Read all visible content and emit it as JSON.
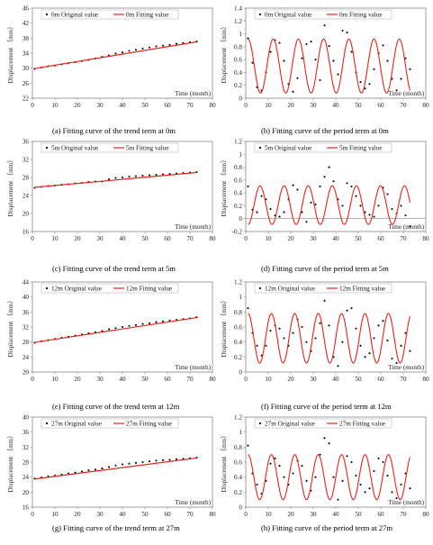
{
  "chart_data": [
    {
      "id": "a",
      "type": "scatter",
      "caption": "(a)   Fitting curve of the trend term at 0m",
      "ylabel": "Displacement （mm）",
      "xlabel": "Time (month)",
      "xlim": [
        0,
        80
      ],
      "ylim": [
        22,
        46
      ],
      "xticks": [
        "0",
        "10",
        "20",
        "30",
        "40",
        "50",
        "60",
        "70",
        "80"
      ],
      "yticks": [
        "22",
        "26",
        "30",
        "34",
        "38",
        "42",
        "46"
      ],
      "legend": {
        "placement": "top-left"
      },
      "series": [
        {
          "name": "0m  Original value",
          "kind": "points",
          "color": "#000000",
          "x": [
            1,
            4,
            7,
            10,
            13,
            16,
            19,
            22,
            25,
            28,
            31,
            34,
            37,
            40,
            43,
            46,
            49,
            52,
            55,
            58,
            61,
            64,
            67,
            70,
            73
          ],
          "y": [
            29.8,
            30.2,
            30.5,
            30.7,
            31.0,
            31.3,
            31.6,
            31.9,
            32.2,
            32.6,
            33.0,
            33.4,
            33.9,
            34.2,
            34.6,
            34.9,
            35.2,
            35.5,
            35.8,
            36.0,
            36.2,
            36.5,
            36.7,
            36.9,
            37.1
          ]
        },
        {
          "name": "0m  Fitting value",
          "kind": "line",
          "color": "#e8231b",
          "x": [
            1,
            73
          ],
          "y": [
            29.9,
            37.0
          ]
        }
      ]
    },
    {
      "id": "b",
      "type": "scatter",
      "caption": "(b)  Fitting curve of the period term at 0m",
      "ylabel": "Displacement （mm）",
      "xlabel": "Time (month)",
      "xlim": [
        0,
        80
      ],
      "ylim": [
        0,
        1.4
      ],
      "xticks": [
        "0",
        "10",
        "20",
        "30",
        "40",
        "50",
        "60",
        "70",
        "80"
      ],
      "yticks": [
        "0",
        "0.2",
        "0.4",
        "0.6",
        "0.8",
        "1",
        "1.2",
        "1.4"
      ],
      "legend": {
        "placement": "top-left"
      },
      "series": [
        {
          "name": "0m  Original value",
          "kind": "points",
          "color": "#000000",
          "x": [
            1,
            3,
            5,
            7,
            9,
            11,
            13,
            15,
            17,
            19,
            21,
            23,
            25,
            27,
            29,
            31,
            33,
            35,
            37,
            39,
            41,
            43,
            45,
            47,
            49,
            51,
            53,
            55,
            57,
            59,
            61,
            63,
            65,
            67,
            69,
            71,
            73
          ],
          "y": [
            0.93,
            0.55,
            0.17,
            0.12,
            0.4,
            0.72,
            0.9,
            0.86,
            0.58,
            0.22,
            0.1,
            0.31,
            0.62,
            0.84,
            0.88,
            0.6,
            0.28,
            1.13,
            0.81,
            0.58,
            0.37,
            1.05,
            1.02,
            0.72,
            0.4,
            0.25,
            0.15,
            0.22,
            0.45,
            0.7,
            0.82,
            0.58,
            0.3,
            0.12,
            0.3,
            0.62,
            0.45
          ]
        },
        {
          "name": "0m  Fitting value",
          "kind": "line",
          "color": "#e8231b",
          "function": "0.5+0.42*cos(2*pi*(t-1)/11.2)",
          "x_range": [
            1,
            73
          ]
        }
      ]
    },
    {
      "id": "c",
      "type": "scatter",
      "caption": "(c)  Fitting curve of the trend term at 5m",
      "ylabel": "Displacement （mm）",
      "xlabel": "Time (month)",
      "xlim": [
        0,
        80
      ],
      "ylim": [
        16,
        36
      ],
      "xticks": [
        "0",
        "10",
        "20",
        "30",
        "40",
        "50",
        "60",
        "70",
        "80"
      ],
      "yticks": [
        "16",
        "20",
        "24",
        "28",
        "32",
        "36"
      ],
      "legend": {
        "placement": "top-left"
      },
      "series": [
        {
          "name": "5m  Original value",
          "kind": "points",
          "color": "#000000",
          "x": [
            1,
            4,
            7,
            10,
            13,
            16,
            19,
            22,
            25,
            28,
            31,
            34,
            37,
            40,
            43,
            46,
            49,
            52,
            55,
            58,
            61,
            64,
            67,
            70,
            73
          ],
          "y": [
            25.7,
            25.9,
            26.1,
            26.2,
            26.4,
            26.5,
            26.7,
            26.8,
            27.0,
            27.1,
            27.1,
            27.6,
            27.9,
            28.0,
            28.2,
            28.3,
            28.4,
            28.5,
            28.6,
            28.7,
            28.8,
            28.9,
            29.0,
            29.1,
            29.2
          ]
        },
        {
          "name": "5m  Fitting value",
          "kind": "line",
          "color": "#e8231b",
          "x": [
            1,
            73
          ],
          "y": [
            25.8,
            29.1
          ]
        }
      ]
    },
    {
      "id": "d",
      "type": "scatter",
      "caption": "(d)  Fitting curve of the period term at 5m",
      "ylabel": "Displacement （mm）",
      "xlabel": "Time (month)",
      "xlim": [
        0,
        80
      ],
      "ylim": [
        -0.2,
        1.2
      ],
      "xticks": [
        "0",
        "10",
        "20",
        "30",
        "40",
        "50",
        "60",
        "70",
        "80"
      ],
      "yticks": [
        "-0.2",
        "0",
        "0.2",
        "0.4",
        "0.6",
        "0.8",
        "1",
        "1.2"
      ],
      "legend": {
        "placement": "top-left"
      },
      "series": [
        {
          "name": "5m  Original value",
          "kind": "points",
          "color": "#000000",
          "x": [
            1,
            3,
            5,
            7,
            9,
            11,
            13,
            15,
            17,
            19,
            21,
            23,
            25,
            27,
            29,
            31,
            33,
            35,
            37,
            39,
            41,
            43,
            45,
            47,
            49,
            51,
            53,
            55,
            57,
            59,
            61,
            63,
            65,
            67,
            69,
            71,
            73
          ],
          "y": [
            0.5,
            0.14,
            0.1,
            0.35,
            0.3,
            0.15,
            0.05,
            0.03,
            0.1,
            0.3,
            0.52,
            0.45,
            0.1,
            -0.05,
            0.25,
            0.22,
            0.5,
            0.65,
            0.8,
            0.58,
            0.3,
            0.2,
            0.55,
            0.5,
            0.35,
            0.2,
            0.1,
            0.06,
            0.03,
            0.2,
            0.48,
            0.38,
            0.15,
            0.08,
            0.2,
            0.05,
            -0.12
          ]
        },
        {
          "name": "5m  Fitting value",
          "kind": "line",
          "color": "#e8231b",
          "function": "0.21-0.3*cos(2*pi*(t-1)/10.7)",
          "x_range": [
            1,
            73
          ]
        }
      ]
    },
    {
      "id": "e",
      "type": "scatter",
      "caption": "(e)   Fitting curve of the trend term at 12m",
      "ylabel": "Displacement （mm）",
      "xlabel": "Time (month)",
      "xlim": [
        0,
        80
      ],
      "ylim": [
        20,
        44
      ],
      "xticks": [
        "0",
        "10",
        "20",
        "30",
        "40",
        "50",
        "60",
        "70",
        "80"
      ],
      "yticks": [
        "20",
        "24",
        "28",
        "32",
        "36",
        "40",
        "44"
      ],
      "legend": {
        "placement": "top-left"
      },
      "series": [
        {
          "name": "12m  Original value",
          "kind": "points",
          "color": "#000000",
          "x": [
            1,
            4,
            7,
            10,
            13,
            16,
            19,
            22,
            25,
            28,
            31,
            34,
            37,
            40,
            43,
            46,
            49,
            52,
            55,
            58,
            61,
            64,
            67,
            70,
            73
          ],
          "y": [
            27.8,
            28.2,
            28.5,
            28.8,
            29.1,
            29.4,
            29.7,
            30.0,
            30.3,
            30.6,
            30.9,
            31.4,
            31.7,
            32.0,
            32.3,
            32.5,
            32.8,
            33.0,
            33.3,
            33.5,
            33.7,
            33.9,
            34.1,
            34.3,
            34.6
          ]
        },
        {
          "name": "12m  Fitting value",
          "kind": "line",
          "color": "#e8231b",
          "x": [
            1,
            73
          ],
          "y": [
            27.9,
            34.5
          ]
        }
      ]
    },
    {
      "id": "f",
      "type": "scatter",
      "caption": "(f)  Fitting curve of the period term at 12m",
      "ylabel": "Displacement （mm）",
      "xlabel": "Time (month)",
      "xlim": [
        0,
        80
      ],
      "ylim": [
        0,
        1.2
      ],
      "xticks": [
        "0",
        "10",
        "20",
        "30",
        "40",
        "50",
        "60",
        "70",
        "80"
      ],
      "yticks": [
        "0",
        "0.2",
        "0.4",
        "0.6",
        "0.8",
        "1",
        "1.2"
      ],
      "legend": {
        "placement": "top-left"
      },
      "series": [
        {
          "name": "12m  Original value",
          "kind": "points",
          "color": "#000000",
          "x": [
            1,
            3,
            5,
            7,
            9,
            11,
            13,
            15,
            17,
            19,
            21,
            23,
            25,
            27,
            29,
            31,
            33,
            35,
            37,
            39,
            41,
            43,
            45,
            47,
            49,
            51,
            53,
            55,
            57,
            59,
            61,
            63,
            65,
            67,
            69,
            71,
            73
          ],
          "y": [
            0.85,
            0.52,
            0.35,
            0.22,
            0.35,
            0.55,
            0.62,
            0.58,
            0.45,
            0.35,
            0.52,
            0.7,
            0.6,
            0.4,
            0.28,
            0.45,
            0.65,
            0.95,
            0.62,
            0.2,
            0.08,
            0.4,
            0.82,
            0.85,
            0.58,
            0.35,
            0.2,
            0.25,
            0.45,
            0.62,
            0.68,
            0.42,
            0.18,
            0.12,
            0.35,
            0.52,
            0.28
          ]
        },
        {
          "name": "12m  Fitting value",
          "kind": "line",
          "color": "#e8231b",
          "function": "0.45+0.33*cos(2*pi*(t-1)/10.4)",
          "x_range": [
            1,
            73
          ]
        }
      ]
    },
    {
      "id": "g",
      "type": "scatter",
      "caption": "(g)  Fitting curve of the trend term at 27m",
      "ylabel": "Displacement （mm）",
      "xlabel": "Time (month)",
      "xlim": [
        0,
        80
      ],
      "ylim": [
        16,
        40
      ],
      "xticks": [
        "0",
        "10",
        "20",
        "30",
        "40",
        "50",
        "60",
        "70",
        "80"
      ],
      "yticks": [
        "16",
        "20",
        "24",
        "28",
        "32",
        "36",
        "40"
      ],
      "legend": {
        "placement": "top-left"
      },
      "series": [
        {
          "name": "27m  Original value",
          "kind": "points",
          "color": "#000000",
          "x": [
            1,
            4,
            7,
            10,
            13,
            16,
            19,
            22,
            25,
            28,
            31,
            34,
            37,
            40,
            43,
            46,
            49,
            52,
            55,
            58,
            61,
            64,
            67,
            70,
            73
          ],
          "y": [
            23.6,
            23.9,
            24.2,
            24.4,
            24.7,
            25.0,
            25.2,
            25.5,
            25.8,
            26.0,
            26.3,
            26.7,
            27.1,
            27.4,
            27.6,
            27.8,
            28.0,
            28.2,
            28.4,
            28.5,
            28.6,
            28.8,
            28.9,
            29.0,
            29.2
          ]
        },
        {
          "name": "27m  Fitting value",
          "kind": "line",
          "color": "#e8231b",
          "x": [
            1,
            73
          ],
          "y": [
            23.5,
            29.1
          ]
        }
      ]
    },
    {
      "id": "h",
      "type": "scatter",
      "caption": "(h)  Fitting curve of the period term at 27m",
      "ylabel": "Displacement （mm）",
      "xlabel": "Time (month)",
      "xlim": [
        0,
        80
      ],
      "ylim": [
        0,
        1.2
      ],
      "xticks": [
        "0",
        "10",
        "20",
        "30",
        "40",
        "50",
        "60",
        "70",
        "80"
      ],
      "yticks": [
        "0",
        "0.2",
        "0.4",
        "0.6",
        "0.8",
        "1",
        "1.2"
      ],
      "legend": {
        "placement": "top-left"
      },
      "series": [
        {
          "name": "27m  Original value",
          "kind": "points",
          "color": "#000000",
          "x": [
            1,
            3,
            5,
            7,
            9,
            11,
            13,
            15,
            17,
            19,
            21,
            23,
            25,
            27,
            29,
            31,
            33,
            35,
            37,
            39,
            41,
            43,
            45,
            47,
            49,
            51,
            53,
            55,
            57,
            59,
            61,
            63,
            65,
            67,
            69,
            71,
            73
          ],
          "y": [
            0.82,
            0.45,
            0.3,
            0.18,
            0.35,
            0.58,
            0.65,
            0.55,
            0.4,
            0.3,
            0.45,
            0.62,
            0.55,
            0.35,
            0.22,
            0.4,
            0.7,
            0.92,
            0.85,
            0.4,
            0.1,
            0.35,
            0.68,
            0.6,
            0.42,
            0.3,
            0.2,
            0.25,
            0.48,
            0.65,
            0.6,
            0.42,
            0.2,
            0.12,
            0.3,
            0.45,
            0.25
          ]
        },
        {
          "name": "27m  Fitting value",
          "kind": "line",
          "color": "#e8231b",
          "function": "0.4+0.3*cos(2*pi*(t-1)/10.4)",
          "x_range": [
            1,
            73
          ]
        }
      ]
    }
  ]
}
